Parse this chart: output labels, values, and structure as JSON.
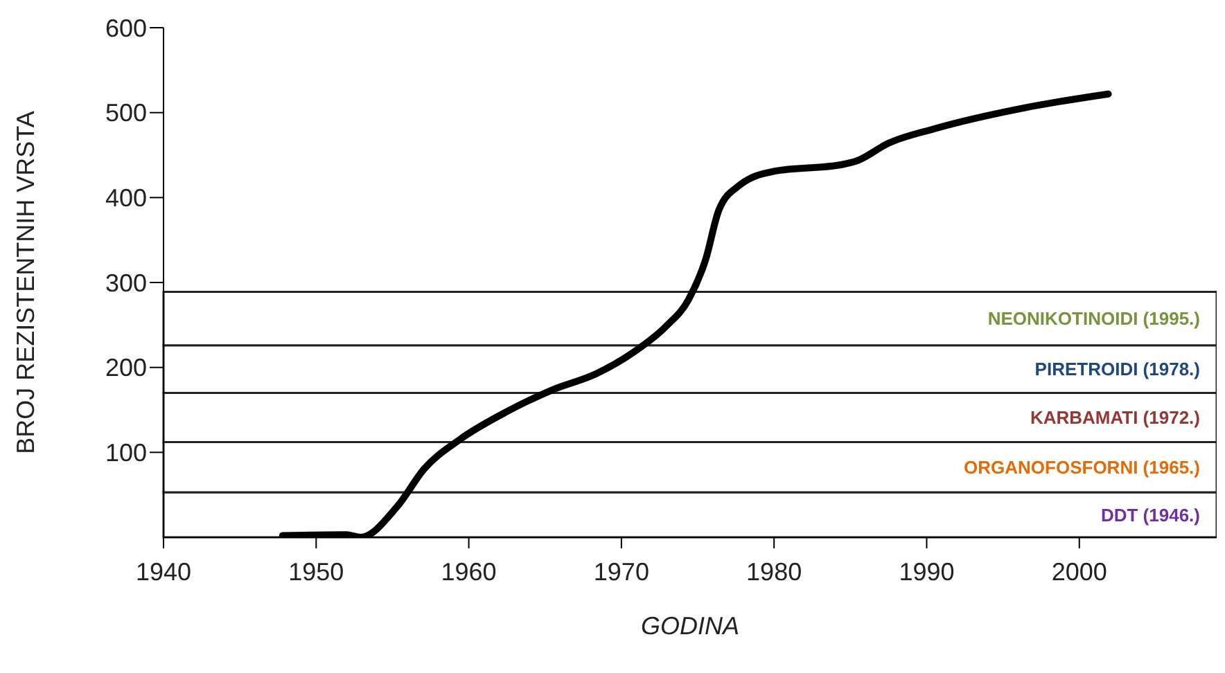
{
  "chart_data": {
    "type": "line",
    "xlabel": "GODINA",
    "ylabel": "BROJ REZISTENTNIH VRSTA",
    "x": [
      1947.8,
      1952,
      1952.9,
      1955.3,
      1957.1,
      1959.4,
      1962.5,
      1965.4,
      1968.4,
      1970.8,
      1972.9,
      1974.4,
      1975.5,
      1976.4,
      1977.7,
      1980,
      1984.5,
      1985.4,
      1987.5,
      1990.5,
      1996.5,
      2001.9
    ],
    "series": [
      {
        "color": "#000000",
        "values": [
          2,
          3,
          0,
          36,
          81,
          115,
          148,
          173,
          193,
          218,
          248,
          280,
          326,
          386,
          414,
          431,
          439,
          443,
          464,
          481,
          506,
          522
        ]
      }
    ],
    "xlim": [
      1940,
      2009
    ],
    "xticks": [
      1940,
      1950,
      1960,
      1970,
      1980,
      1990,
      2000
    ],
    "ylim": [
      0,
      600
    ],
    "yticks": [
      100,
      200,
      300,
      400,
      500,
      600
    ],
    "marker": "none",
    "line_style": "solid",
    "bands": [
      {
        "axis": "y",
        "from": 0,
        "to": 53,
        "label": "DDT (1946.)",
        "color": "#ffffff"
      },
      {
        "axis": "y",
        "from": 53,
        "to": 112,
        "label": "ORGANOFOSFORNI (1965.)",
        "color": "#ffffff"
      },
      {
        "axis": "y",
        "from": 112,
        "to": 170,
        "label": "KARBAMATI (1972.)",
        "color": "#ffffff"
      },
      {
        "axis": "y",
        "from": 170,
        "to": 226,
        "label": "PIRETROIDI (1978.)",
        "color": "#ffffff"
      },
      {
        "axis": "y",
        "from": 226,
        "to": 289,
        "label": "NEONIKOTINOIDI (1995.)",
        "color": "#ffffff"
      }
    ]
  }
}
